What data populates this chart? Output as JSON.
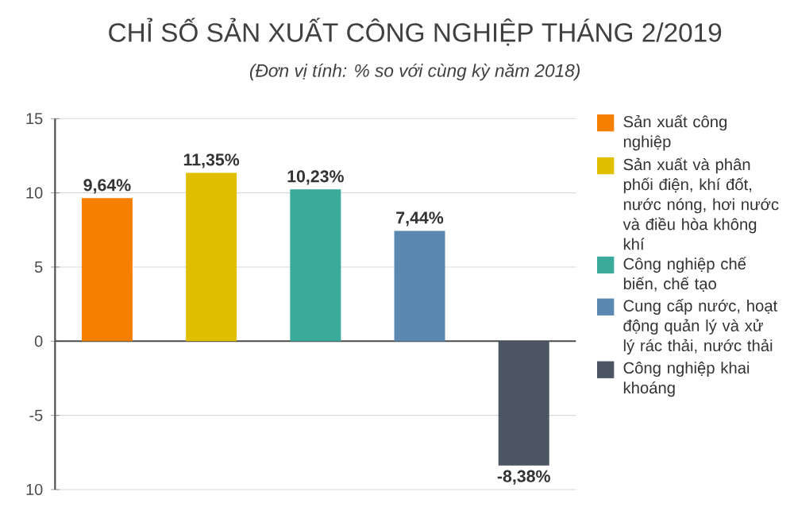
{
  "chart_data": {
    "type": "bar",
    "title": "CHỈ SỐ SẢN XUẤT CÔNG NGHIỆP THÁNG 2/2019",
    "subtitle": "(Đơn vị tính: % so với cùng kỳ năm 2018)",
    "categories": [
      null,
      null,
      null,
      null,
      null
    ],
    "series": [
      {
        "name": "Sản xuất công nghiệp",
        "color": "#f77f00",
        "values": [
          9.64,
          null,
          null,
          null,
          null
        ],
        "value_labels": [
          "9,64%",
          null,
          null,
          null,
          null
        ]
      },
      {
        "name": "Sản xuất và phân phối điện, khí đốt, nước nóng, hơi nước và điều hòa không khí",
        "color": "#e0be00",
        "values": [
          null,
          11.35,
          null,
          null,
          null
        ],
        "value_labels": [
          null,
          "11,35%",
          null,
          null,
          null
        ]
      },
      {
        "name": "Công nghiệp chế biến, chế tạo",
        "color": "#3aab9b",
        "values": [
          null,
          null,
          10.23,
          null,
          null
        ],
        "value_labels": [
          null,
          null,
          "10,23%",
          null,
          null
        ]
      },
      {
        "name": "Cung cấp nước, hoạt động quản lý và xử lý rác thải, nước thải",
        "color": "#5b88b0",
        "values": [
          null,
          null,
          null,
          7.44,
          null
        ],
        "value_labels": [
          null,
          null,
          null,
          "7,44%",
          null
        ]
      },
      {
        "name": "Công nghiệp khai khoáng",
        "color": "#4b5563",
        "values": [
          null,
          null,
          null,
          null,
          -8.38
        ],
        "value_labels": [
          null,
          null,
          null,
          null,
          "-8,38%"
        ]
      }
    ],
    "ylim": [
      -10,
      15
    ],
    "yticks": [
      15,
      10,
      5,
      0,
      -5,
      {
        "value": -10,
        "label": "10"
      }
    ],
    "grid": "y",
    "legend": "right"
  }
}
